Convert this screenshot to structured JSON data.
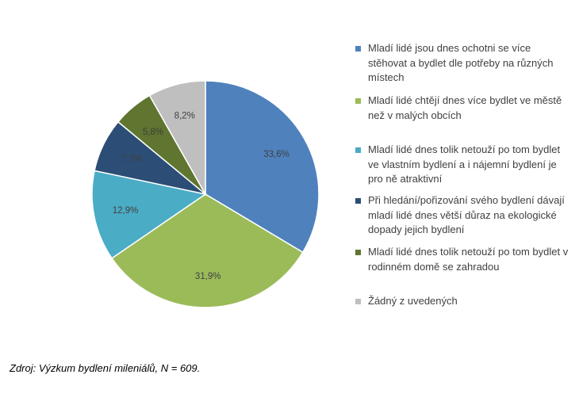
{
  "chart_data": {
    "type": "pie",
    "slices": [
      {
        "label": "Mladí lidé jsou dnes ochotni se více stěhovat a bydlet dle potřeby na různých místech",
        "value": 33.6,
        "display": "33,6%",
        "color": "#4f81bd",
        "label_color": "#404040"
      },
      {
        "label": "Mladí lidé chtějí dnes více bydlet ve městě než v malých obcích",
        "value": 31.9,
        "display": "31,9%",
        "color": "#9bbb59",
        "label_color": "#404040"
      },
      {
        "label": "Mladí lidé dnes tolik netouží po tom bydlet ve vlastním bydlení a i nájemní bydlení je pro ně atraktivní",
        "value": 12.9,
        "display": "12,9%",
        "color": "#4bacc6",
        "label_color": "#404040"
      },
      {
        "label": "Při hledání/pořizování svého bydlení dávají mladí lidé dnes větší důraz na ekologické dopady jejich bydlení",
        "value": 7.7,
        "display": "7,7%",
        "color": "#2c4d75",
        "label_color": "#404040"
      },
      {
        "label": "Mladí lidé dnes tolik netouží po tom bydlet v rodinném domě se zahradou",
        "value": 5.8,
        "display": "5,8%",
        "color": "#5f7530",
        "label_color": "#404040"
      },
      {
        "label": "Žádný z uvedených",
        "value": 8.2,
        "display": "8,2%",
        "color": "#bfbfbf",
        "label_color": "#404040"
      }
    ],
    "legend_position": "right"
  },
  "source": "Zdroj: Výzkum bydlení mileniálů, N = 609."
}
